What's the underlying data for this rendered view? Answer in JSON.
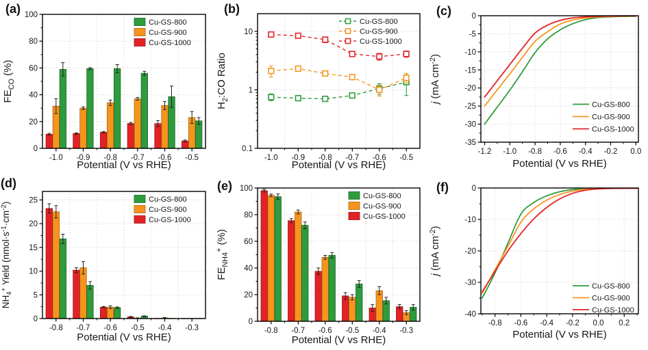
{
  "chart_data": [
    {
      "panel": "(a)",
      "type": "bar",
      "xlabel": "Potential (V vs RHE)",
      "ylabel": [
        {
          "t": "FE"
        },
        {
          "t": "CO",
          "s": "sub"
        },
        {
          "t": " (%)"
        }
      ],
      "categories": [
        "-1.0",
        "-0.9",
        "-0.8",
        "-0.7",
        "-0.6",
        "-0.5"
      ],
      "ylim": [
        0,
        100
      ],
      "yticks": [
        0,
        20,
        40,
        60,
        80,
        100
      ],
      "ytick_labels": [
        "0",
        "20",
        "40",
        "60",
        "80",
        "100"
      ],
      "yminor": [
        10,
        30,
        50,
        70,
        90
      ],
      "series": [
        {
          "name": "Cu-GS-1000",
          "color": "#E32226",
          "values": [
            10.5,
            11,
            12,
            18.5,
            18.5,
            5.5
          ],
          "errors": [
            0.7,
            0.6,
            0.6,
            0.8,
            2.2,
            0.7
          ]
        },
        {
          "name": "Cu-GS-900",
          "color": "#F7941D",
          "values": [
            31.5,
            30,
            34,
            37,
            32,
            23
          ],
          "errors": [
            5.5,
            1,
            2,
            1,
            3,
            4.5
          ]
        },
        {
          "name": "Cu-GS-800",
          "color": "#2E9B3D",
          "values": [
            59,
            59.5,
            59.5,
            56,
            38.5,
            20.5
          ],
          "errors": [
            5,
            0.7,
            3,
            1.5,
            8,
            2.5
          ]
        }
      ],
      "legend": {
        "position": "top-right",
        "marker": "square",
        "items": [
          {
            "label": "Cu-GS-800",
            "color": "#2E9B3D"
          },
          {
            "label": "Cu-GS-900",
            "color": "#F7941D"
          },
          {
            "label": "Cu-GS-1000",
            "color": "#E32226"
          }
        ]
      }
    },
    {
      "panel": "(b)",
      "type": "scatter-line",
      "log_y": true,
      "xlabel": "Potential (V vs RHE)",
      "ylabel": [
        {
          "t": "H"
        },
        {
          "t": "2",
          "s": "sub"
        },
        {
          "t": ":CO Ratio"
        }
      ],
      "categories": [
        "-1.0",
        "-0.9",
        "-0.8",
        "-0.7",
        "-0.6",
        "-0.5"
      ],
      "ylim": [
        0.1,
        20
      ],
      "yticks": [
        0.1,
        1,
        10
      ],
      "ytick_labels": [
        "0.1",
        "1",
        "10"
      ],
      "yminor": [
        0.2,
        0.3,
        0.4,
        0.5,
        0.6,
        0.7,
        0.8,
        0.9,
        2,
        3,
        4,
        5,
        6,
        7,
        8,
        9
      ],
      "series": [
        {
          "name": "Cu-GS-800",
          "color": "#2E9B3D",
          "values": [
            0.75,
            0.72,
            0.7,
            0.8,
            1.05,
            1.35
          ],
          "errors": [
            0.1,
            0.05,
            0.05,
            0.06,
            0.22,
            0.55
          ]
        },
        {
          "name": "Cu-GS-900",
          "color": "#F7941D",
          "values": [
            2.1,
            2.3,
            1.9,
            1.65,
            1.0,
            1.6
          ],
          "errors": [
            0.45,
            0.2,
            0.15,
            0.1,
            0.22,
            0.3
          ]
        },
        {
          "name": "Cu-GS-1000",
          "color": "#E32226",
          "values": [
            8.8,
            8.4,
            7.2,
            4.1,
            3.7,
            4.1
          ],
          "errors": [
            0.8,
            0.6,
            0.8,
            0.4,
            0.5,
            0.5
          ]
        }
      ],
      "legend": {
        "position": "top-right",
        "marker": "dash-square",
        "items": [
          {
            "label": "Cu-GS-800",
            "color": "#2E9B3D"
          },
          {
            "label": "Cu-GS-900",
            "color": "#F7941D"
          },
          {
            "label": "Cu-GS-1000",
            "color": "#E32226"
          }
        ]
      }
    },
    {
      "panel": "(c)",
      "type": "line",
      "xlabel": "Potential (V vs RHE)",
      "ylabel": [
        {
          "t": "j",
          "i": true
        },
        {
          "t": " (mA cm"
        },
        {
          "t": "-2",
          "s": "sup"
        },
        {
          "t": ")"
        }
      ],
      "x": [
        -1.2,
        -1.1,
        -1.0,
        -0.9,
        -0.8,
        -0.7,
        -0.6,
        -0.5,
        -0.4,
        -0.3,
        -0.2,
        -0.1,
        0.0
      ],
      "xlim": [
        -1.23,
        0.02
      ],
      "xticks": [
        -1.2,
        -1.0,
        -0.8,
        -0.6,
        -0.4,
        -0.2,
        0.0
      ],
      "xtick_labels": [
        "-1.2",
        "-1.0",
        "-0.8",
        "-0.6",
        "-0.4",
        "-0.2",
        "0.0"
      ],
      "xminor": [
        -1.1,
        -0.9,
        -0.7,
        -0.5,
        -0.3,
        -0.1
      ],
      "ylim": [
        -35,
        0
      ],
      "yticks": [
        0,
        -5,
        -10,
        -15,
        -20,
        -25,
        -30,
        -35
      ],
      "ytick_labels": [
        "0",
        "-5",
        "-10",
        "-15",
        "-20",
        "-25",
        "-30",
        "-35"
      ],
      "yminor": [
        -2.5,
        -7.5,
        -12.5,
        -17.5,
        -22.5,
        -27.5,
        -32.5
      ],
      "series": [
        {
          "name": "Cu-GS-800",
          "color": "#2E9B3D",
          "values": [
            -30,
            -25.3,
            -20.6,
            -15.5,
            -10.2,
            -6.4,
            -3.9,
            -2.2,
            -1.1,
            -0.5,
            -0.3,
            -0.2,
            -0.15
          ]
        },
        {
          "name": "Cu-GS-900",
          "color": "#F7941D",
          "values": [
            -25,
            -20.5,
            -16.1,
            -11.5,
            -7.1,
            -4.4,
            -2.3,
            -1.2,
            -0.6,
            -0.3,
            -0.2,
            -0.12,
            -0.1
          ]
        },
        {
          "name": "Cu-GS-1000",
          "color": "#E32226",
          "values": [
            -22.5,
            -18,
            -13.5,
            -9,
            -4.8,
            -2.6,
            -1.3,
            -0.6,
            -0.3,
            -0.15,
            -0.1,
            -0.05,
            -0.05
          ]
        }
      ],
      "legend": {
        "position": "right-lower",
        "marker": "line",
        "items": [
          {
            "label": "Cu-GS-800",
            "color": "#2E9B3D"
          },
          {
            "label": "Cu-GS-900",
            "color": "#F7941D"
          },
          {
            "label": "Cu-GS-1000",
            "color": "#E32226"
          }
        ]
      }
    },
    {
      "panel": "(d)",
      "type": "bar",
      "xlabel": "Potential (V vs RHE)",
      "ylabel": [
        {
          "t": "NH"
        },
        {
          "t": "4",
          "s": "sub"
        },
        {
          "t": "+",
          "s": "sup"
        },
        {
          "t": " Yield (nmol·s"
        },
        {
          "t": "-1",
          "s": "sup"
        },
        {
          "t": "·cm"
        },
        {
          "t": "-2",
          "s": "sup"
        },
        {
          "t": ")"
        }
      ],
      "categories": [
        "-0.8",
        "-0.7",
        "-0.6",
        "-0.5",
        "-0.4",
        "-0.3"
      ],
      "ylim": [
        0,
        26.8
      ],
      "yticks": [
        0,
        5,
        10,
        15,
        20,
        25
      ],
      "ytick_labels": [
        "0",
        "5",
        "10",
        "15",
        "20",
        "25"
      ],
      "yminor": [
        2.5,
        7.5,
        12.5,
        17.5,
        22.5
      ],
      "series": [
        {
          "name": "Cu-GS-1000",
          "color": "#E32226",
          "values": [
            23.2,
            10.2,
            2.4,
            0.35,
            0.05,
            0.05
          ],
          "errors": [
            1.0,
            0.5,
            0.15,
            0.1,
            0.02,
            0.02
          ]
        },
        {
          "name": "Cu-GS-900",
          "color": "#F7941D",
          "values": [
            22.5,
            10.7,
            2.4,
            0.1,
            0.15,
            0.05
          ],
          "errors": [
            1.3,
            1.3,
            0.3,
            0.05,
            0.05,
            0.02
          ]
        },
        {
          "name": "Cu-GS-800",
          "color": "#2E9B3D",
          "values": [
            16.8,
            7.0,
            2.3,
            0.5,
            0.05,
            0.05
          ],
          "errors": [
            1.0,
            0.8,
            0.15,
            0.08,
            0.02,
            0.02
          ]
        }
      ],
      "legend": {
        "position": "top-right",
        "marker": "square",
        "items": [
          {
            "label": "Cu-GS-800",
            "color": "#2E9B3D"
          },
          {
            "label": "Cu-GS-900",
            "color": "#F7941D"
          },
          {
            "label": "Cu-GS-1000",
            "color": "#E32226"
          }
        ]
      }
    },
    {
      "panel": "(e)",
      "type": "bar",
      "xlabel": "Potential (V vs RHE)",
      "ylabel": [
        {
          "t": "FE"
        },
        {
          "t": "NH4",
          "s": "sub"
        },
        {
          "t": "+",
          "s": "sup"
        },
        {
          "t": " (%)"
        }
      ],
      "categories": [
        "-0.8",
        "-0.7",
        "-0.6",
        "-0.5",
        "-0.4",
        "-0.3"
      ],
      "ylim": [
        0,
        100
      ],
      "yticks": [
        0,
        20,
        40,
        60,
        80,
        100
      ],
      "ytick_labels": [
        "0",
        "20",
        "40",
        "60",
        "80",
        "100"
      ],
      "yminor": [
        10,
        30,
        50,
        70,
        90
      ],
      "series": [
        {
          "name": "Cu-GS-1000",
          "color": "#E32226",
          "values": [
            98,
            75.5,
            37.5,
            19,
            10,
            11
          ],
          "errors": [
            1,
            1.5,
            2.5,
            2.5,
            2.5,
            1.5
          ]
        },
        {
          "name": "Cu-GS-900",
          "color": "#F7941D",
          "values": [
            94.5,
            82,
            48,
            18,
            23,
            6.5
          ],
          "errors": [
            1,
            1.5,
            1.5,
            2,
            3,
            1.5
          ]
        },
        {
          "name": "Cu-GS-800",
          "color": "#2E9B3D",
          "values": [
            93.5,
            72,
            49.5,
            28,
            15.5,
            10.5
          ],
          "errors": [
            2,
            2.5,
            2,
            2.5,
            2.5,
            2
          ]
        }
      ],
      "legend": {
        "position": "top-right",
        "marker": "square",
        "items": [
          {
            "label": "Cu-GS-800",
            "color": "#2E9B3D"
          },
          {
            "label": "Cu-GS-900",
            "color": "#F7941D"
          },
          {
            "label": "Cu-GS-1000",
            "color": "#E32226"
          }
        ]
      }
    },
    {
      "panel": "(f)",
      "type": "line",
      "xlabel": "Potential (V vs RHE)",
      "ylabel": [
        {
          "t": "j",
          "i": true
        },
        {
          "t": " (mA cm"
        },
        {
          "t": "-2",
          "s": "sup"
        },
        {
          "t": ")"
        }
      ],
      "x": [
        -0.9,
        -0.8,
        -0.7,
        -0.6,
        -0.5,
        -0.4,
        -0.3,
        -0.2,
        -0.1,
        0.0,
        0.1,
        0.2,
        0.3
      ],
      "xlim": [
        -0.91,
        0.31
      ],
      "xticks": [
        -0.8,
        -0.6,
        -0.4,
        -0.2,
        0.0,
        0.2
      ],
      "xtick_labels": [
        "-0.8",
        "-0.6",
        "-0.4",
        "-0.2",
        "0.0",
        "0.2"
      ],
      "xminor": [
        -0.9,
        -0.7,
        -0.5,
        -0.3,
        -0.1,
        0.1,
        0.3
      ],
      "ylim": [
        -40,
        0
      ],
      "yticks": [
        0,
        -10,
        -20,
        -30,
        -40
      ],
      "ytick_labels": [
        "0",
        "-10",
        "-20",
        "-30",
        "-40"
      ],
      "yminor": [
        -5,
        -15,
        -25,
        -35
      ],
      "series": [
        {
          "name": "Cu-GS-800",
          "color": "#2E9B3D",
          "values": [
            -35,
            -27,
            -17.5,
            -8.3,
            -4.6,
            -2.5,
            -1.2,
            -0.5,
            -0.25,
            -0.15,
            -0.1,
            -0.1,
            -0.1
          ]
        },
        {
          "name": "Cu-GS-900",
          "color": "#F7941D",
          "values": [
            -33.5,
            -26,
            -18.5,
            -10.9,
            -6.6,
            -3.9,
            -2.1,
            -1.0,
            -0.4,
            -0.2,
            -0.12,
            -0.1,
            -0.1
          ]
        },
        {
          "name": "Cu-GS-1000",
          "color": "#E32226",
          "values": [
            -33,
            -26.5,
            -20,
            -14.5,
            -9.8,
            -6.2,
            -3.5,
            -1.7,
            -0.7,
            -0.3,
            -0.15,
            -0.1,
            -0.1
          ]
        }
      ],
      "legend": {
        "position": "bottom-right",
        "marker": "line",
        "items": [
          {
            "label": "Cu-GS-800",
            "color": "#2E9B3D"
          },
          {
            "label": "Cu-GS-900",
            "color": "#F7941D"
          },
          {
            "label": "Cu-GS-1000",
            "color": "#E32226"
          }
        ]
      }
    }
  ]
}
